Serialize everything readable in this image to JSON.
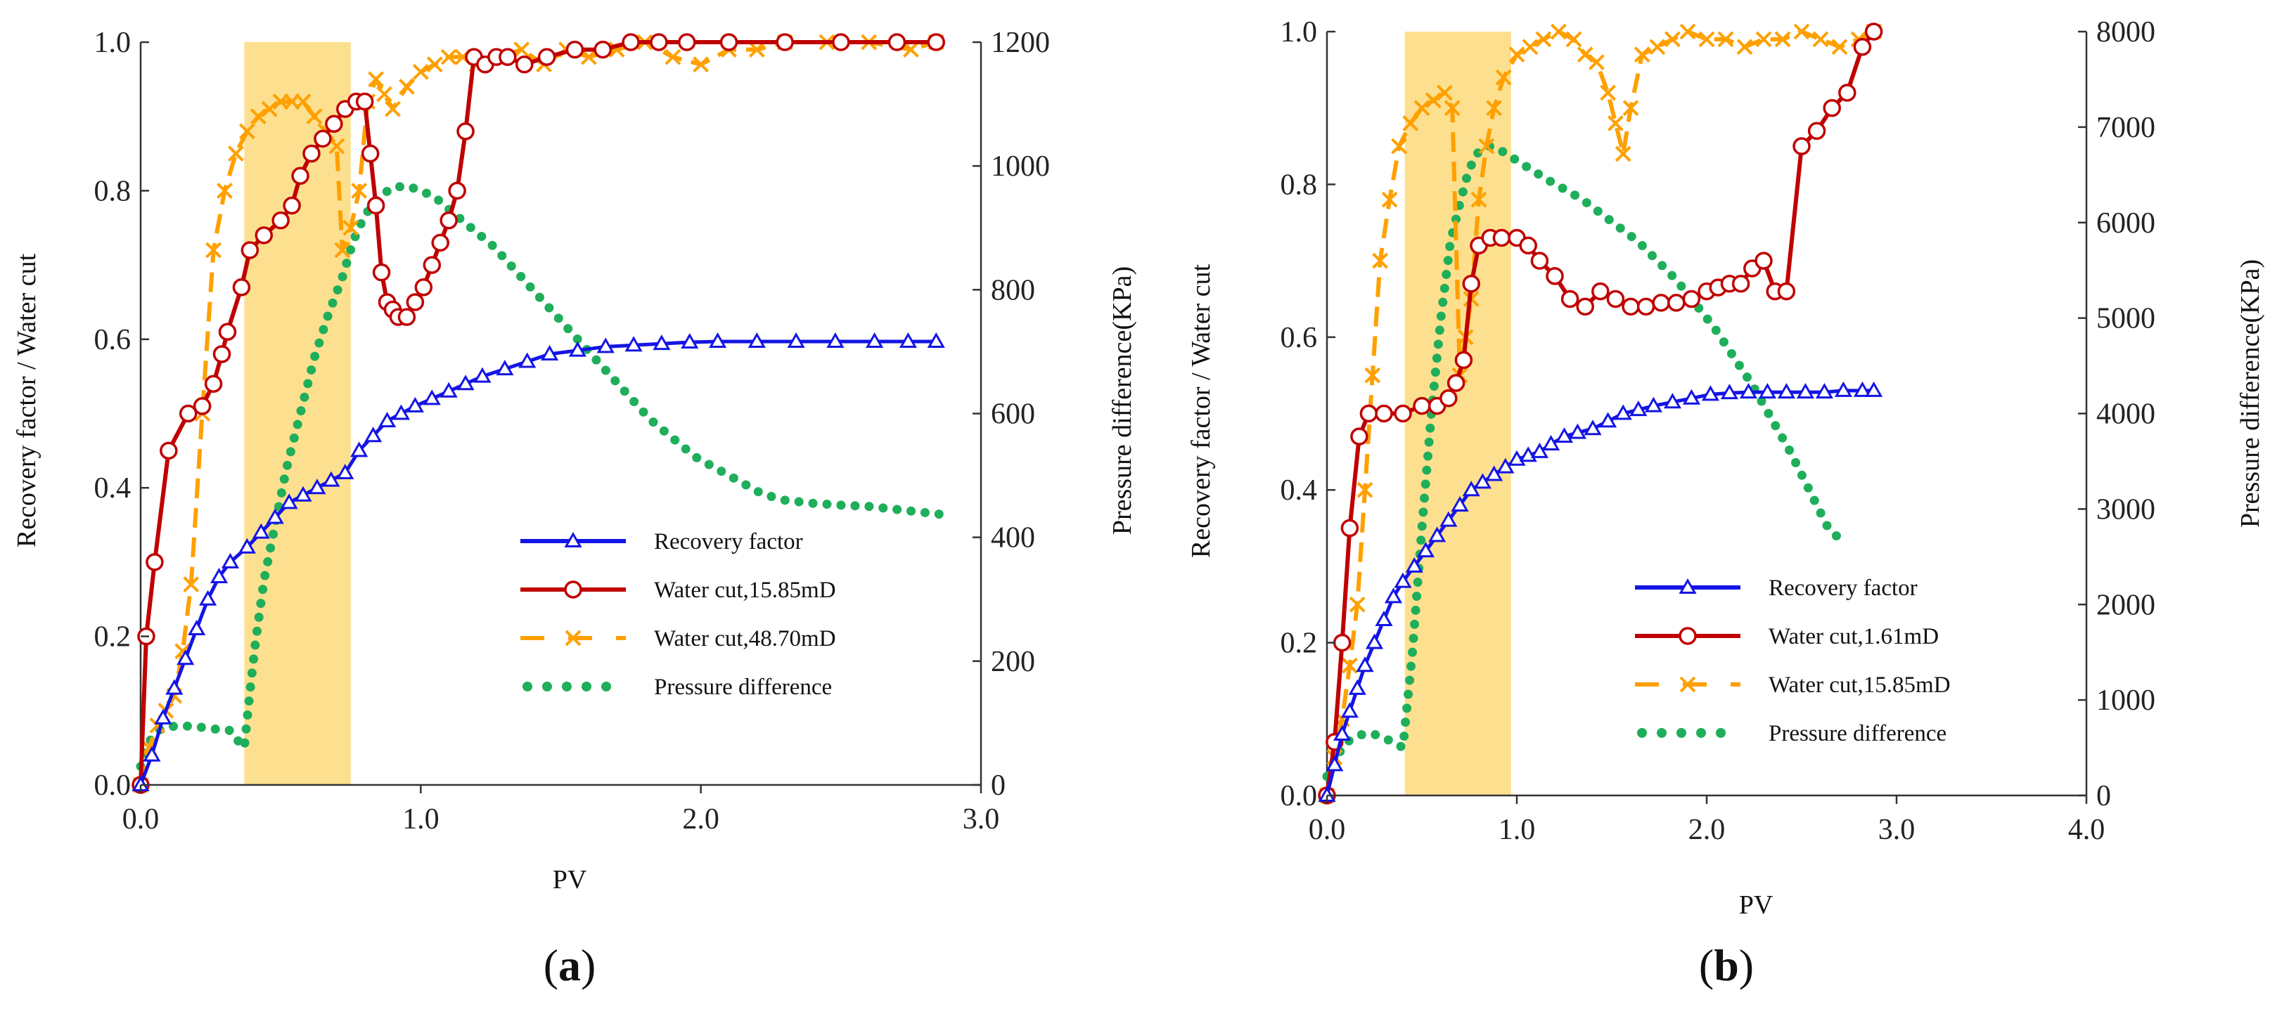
{
  "chart_data": [
    {
      "type": "line",
      "panel_id": "a",
      "caption": {
        "open": "(",
        "letter": "a",
        "close": ")"
      },
      "xlabel": "PV",
      "ylabel_left": "Recovery factor / Water cut",
      "ylabel_right": "Pressure difference(KPa)",
      "xlim": [
        0,
        3
      ],
      "xticks": [
        0,
        1,
        2,
        3
      ],
      "xtick_labels": [
        "0.0",
        "1.0",
        "2.0",
        "3.0"
      ],
      "ylim_left": [
        0,
        1
      ],
      "yticks_left": [
        0,
        0.2,
        0.4,
        0.6,
        0.8,
        1.0
      ],
      "ytick_labels_left": [
        "0.0",
        "0.2",
        "0.4",
        "0.6",
        "0.8",
        "1.0"
      ],
      "ylim_right": [
        0,
        1200
      ],
      "yticks_right": [
        0,
        200,
        400,
        600,
        800,
        1000,
        1200
      ],
      "ytick_labels_right": [
        "0",
        "200",
        "400",
        "600",
        "800",
        "1000",
        "1200"
      ],
      "highlight_x": [
        0.37,
        0.75
      ],
      "highlight_color": "#fde08f",
      "series": [
        {
          "name": "Recovery factor",
          "axis": "left",
          "style": "solid-triangle",
          "color": "#1414e6",
          "x": [
            0,
            0.04,
            0.08,
            0.12,
            0.16,
            0.2,
            0.24,
            0.28,
            0.32,
            0.38,
            0.43,
            0.48,
            0.53,
            0.58,
            0.63,
            0.68,
            0.73,
            0.78,
            0.83,
            0.88,
            0.93,
            0.98,
            1.04,
            1.1,
            1.16,
            1.22,
            1.3,
            1.38,
            1.46,
            1.56,
            1.66,
            1.76,
            1.86,
            1.96,
            2.06,
            2.2,
            2.34,
            2.48,
            2.62,
            2.74,
            2.84
          ],
          "y": [
            0.0,
            0.04,
            0.09,
            0.13,
            0.17,
            0.21,
            0.25,
            0.28,
            0.3,
            0.32,
            0.34,
            0.36,
            0.38,
            0.39,
            0.4,
            0.41,
            0.42,
            0.45,
            0.47,
            0.49,
            0.5,
            0.51,
            0.52,
            0.53,
            0.54,
            0.55,
            0.56,
            0.57,
            0.58,
            0.585,
            0.59,
            0.592,
            0.594,
            0.596,
            0.597,
            0.597,
            0.597,
            0.597,
            0.597,
            0.597,
            0.597
          ]
        },
        {
          "name": "Water cut,15.85mD",
          "axis": "left",
          "style": "solid-circle",
          "color": "#c00000",
          "x": [
            0,
            0.02,
            0.05,
            0.1,
            0.17,
            0.22,
            0.26,
            0.29,
            0.31,
            0.36,
            0.39,
            0.44,
            0.5,
            0.54,
            0.57,
            0.61,
            0.65,
            0.69,
            0.73,
            0.77,
            0.8,
            0.82,
            0.84,
            0.86,
            0.88,
            0.9,
            0.92,
            0.95,
            0.98,
            1.01,
            1.04,
            1.07,
            1.1,
            1.13,
            1.16,
            1.19,
            1.23,
            1.27,
            1.31,
            1.37,
            1.45,
            1.55,
            1.65,
            1.75,
            1.85,
            1.95,
            2.1,
            2.3,
            2.5,
            2.7,
            2.84
          ],
          "y": [
            0.0,
            0.2,
            0.3,
            0.45,
            0.5,
            0.51,
            0.54,
            0.58,
            0.61,
            0.67,
            0.72,
            0.74,
            0.76,
            0.78,
            0.82,
            0.85,
            0.87,
            0.89,
            0.91,
            0.92,
            0.92,
            0.85,
            0.78,
            0.69,
            0.65,
            0.64,
            0.63,
            0.63,
            0.65,
            0.67,
            0.7,
            0.73,
            0.76,
            0.8,
            0.88,
            0.98,
            0.97,
            0.98,
            0.98,
            0.97,
            0.98,
            0.99,
            0.99,
            1.0,
            1.0,
            1.0,
            1.0,
            1.0,
            1.0,
            1.0,
            1.0
          ]
        },
        {
          "name": "Water cut,48.70mD",
          "axis": "left",
          "style": "dashed-cross",
          "color": "#ffa000",
          "x": [
            0,
            0.03,
            0.06,
            0.09,
            0.12,
            0.15,
            0.18,
            0.22,
            0.26,
            0.3,
            0.34,
            0.38,
            0.42,
            0.46,
            0.5,
            0.54,
            0.58,
            0.62,
            0.66,
            0.7,
            0.72,
            0.75,
            0.78,
            0.81,
            0.84,
            0.87,
            0.9,
            0.95,
            1.0,
            1.05,
            1.1,
            1.15,
            1.2,
            1.28,
            1.36,
            1.44,
            1.52,
            1.6,
            1.7,
            1.8,
            1.9,
            2.0,
            2.1,
            2.2,
            2.3,
            2.45,
            2.6,
            2.75,
            2.84
          ],
          "y": [
            0.0,
            0.05,
            0.08,
            0.1,
            0.12,
            0.18,
            0.27,
            0.5,
            0.72,
            0.8,
            0.85,
            0.88,
            0.9,
            0.91,
            0.92,
            0.92,
            0.92,
            0.9,
            0.88,
            0.86,
            0.72,
            0.75,
            0.8,
            0.92,
            0.95,
            0.93,
            0.91,
            0.94,
            0.96,
            0.97,
            0.98,
            0.98,
            0.97,
            0.98,
            0.99,
            0.97,
            0.99,
            0.98,
            0.99,
            1.0,
            0.98,
            0.97,
            0.99,
            0.99,
            1.0,
            1.0,
            1.0,
            0.99,
            1.0
          ]
        },
        {
          "name": "Pressure difference",
          "axis": "right",
          "style": "dotted",
          "color": "#1fae5a",
          "x": [
            0,
            0.03,
            0.07,
            0.12,
            0.17,
            0.22,
            0.27,
            0.32,
            0.35,
            0.37,
            0.39,
            0.41,
            0.44,
            0.48,
            0.52,
            0.57,
            0.62,
            0.67,
            0.72,
            0.76,
            0.8,
            0.85,
            0.9,
            0.95,
            1.0,
            1.05,
            1.1,
            1.18,
            1.26,
            1.34,
            1.42,
            1.5,
            1.58,
            1.66,
            1.74,
            1.82,
            1.9,
            1.98,
            2.06,
            2.14,
            2.22,
            2.3,
            2.4,
            2.5,
            2.6,
            2.7,
            2.8,
            2.86
          ],
          "y": [
            30,
            70,
            90,
            95,
            95,
            93,
            90,
            88,
            70,
            60,
            150,
            230,
            330,
            420,
            510,
            600,
            690,
            760,
            820,
            880,
            920,
            950,
            965,
            968,
            960,
            950,
            930,
            900,
            870,
            830,
            790,
            750,
            710,
            670,
            630,
            590,
            560,
            530,
            510,
            490,
            470,
            460,
            455,
            452,
            450,
            445,
            440,
            437
          ]
        }
      ]
    },
    {
      "type": "line",
      "panel_id": "b",
      "caption": {
        "open": "(",
        "letter": "b",
        "close": ")"
      },
      "xlabel": "PV",
      "ylabel_left": "Recovery factor / Water cut",
      "ylabel_right": "Pressure difference(KPa)",
      "xlim": [
        0,
        4
      ],
      "xticks": [
        0,
        1,
        2,
        3,
        4
      ],
      "xtick_labels": [
        "0.0",
        "1.0",
        "2.0",
        "3.0",
        "4.0"
      ],
      "ylim_left": [
        0,
        1
      ],
      "yticks_left": [
        0,
        0.2,
        0.4,
        0.6,
        0.8,
        1.0
      ],
      "ytick_labels_left": [
        "0.0",
        "0.2",
        "0.4",
        "0.6",
        "0.8",
        "1.0"
      ],
      "ylim_right": [
        0,
        8000
      ],
      "yticks_right": [
        0,
        1000,
        2000,
        3000,
        4000,
        5000,
        6000,
        7000,
        8000
      ],
      "ytick_labels_right": [
        "0",
        "1000",
        "2000",
        "3000",
        "4000",
        "5000",
        "6000",
        "7000",
        "8000"
      ],
      "highlight_x": [
        0.41,
        0.97
      ],
      "highlight_color": "#fde08f",
      "series": [
        {
          "name": "Recovery factor",
          "axis": "left",
          "style": "solid-triangle",
          "color": "#1414e6",
          "x": [
            0,
            0.04,
            0.08,
            0.12,
            0.16,
            0.2,
            0.25,
            0.3,
            0.35,
            0.4,
            0.46,
            0.52,
            0.58,
            0.64,
            0.7,
            0.76,
            0.82,
            0.88,
            0.94,
            1.0,
            1.06,
            1.12,
            1.18,
            1.25,
            1.32,
            1.4,
            1.48,
            1.56,
            1.64,
            1.72,
            1.82,
            1.92,
            2.02,
            2.12,
            2.22,
            2.32,
            2.42,
            2.52,
            2.62,
            2.72,
            2.82,
            2.88
          ],
          "y": [
            0.0,
            0.04,
            0.08,
            0.11,
            0.14,
            0.17,
            0.2,
            0.23,
            0.26,
            0.28,
            0.3,
            0.32,
            0.34,
            0.36,
            0.38,
            0.4,
            0.41,
            0.42,
            0.43,
            0.44,
            0.445,
            0.45,
            0.46,
            0.47,
            0.475,
            0.48,
            0.49,
            0.5,
            0.505,
            0.51,
            0.515,
            0.52,
            0.525,
            0.527,
            0.528,
            0.528,
            0.528,
            0.528,
            0.528,
            0.53,
            0.53,
            0.53
          ]
        },
        {
          "name": "Water cut,1.61mD",
          "axis": "left",
          "style": "solid-circle",
          "color": "#c00000",
          "x": [
            0,
            0.04,
            0.08,
            0.12,
            0.17,
            0.22,
            0.3,
            0.4,
            0.5,
            0.58,
            0.64,
            0.68,
            0.72,
            0.76,
            0.8,
            0.86,
            0.92,
            1.0,
            1.06,
            1.12,
            1.2,
            1.28,
            1.36,
            1.44,
            1.52,
            1.6,
            1.68,
            1.76,
            1.84,
            1.92,
            2.0,
            2.06,
            2.12,
            2.18,
            2.24,
            2.3,
            2.36,
            2.42,
            2.5,
            2.58,
            2.66,
            2.74,
            2.82,
            2.88
          ],
          "y": [
            0.0,
            0.07,
            0.2,
            0.35,
            0.47,
            0.5,
            0.5,
            0.5,
            0.51,
            0.51,
            0.52,
            0.54,
            0.57,
            0.67,
            0.72,
            0.73,
            0.73,
            0.73,
            0.72,
            0.7,
            0.68,
            0.65,
            0.64,
            0.66,
            0.65,
            0.64,
            0.64,
            0.645,
            0.645,
            0.65,
            0.66,
            0.665,
            0.67,
            0.67,
            0.69,
            0.7,
            0.66,
            0.66,
            0.85,
            0.87,
            0.9,
            0.92,
            0.98,
            1.0
          ]
        },
        {
          "name": "Water cut,15.85mD",
          "axis": "left",
          "style": "dashed-cross",
          "color": "#ffa000",
          "x": [
            0,
            0.04,
            0.08,
            0.12,
            0.16,
            0.2,
            0.24,
            0.28,
            0.33,
            0.38,
            0.44,
            0.5,
            0.56,
            0.62,
            0.66,
            0.7,
            0.73,
            0.76,
            0.8,
            0.84,
            0.88,
            0.93,
            1.0,
            1.07,
            1.14,
            1.22,
            1.3,
            1.36,
            1.42,
            1.48,
            1.52,
            1.56,
            1.6,
            1.66,
            1.74,
            1.82,
            1.9,
            2.0,
            2.1,
            2.2,
            2.3,
            2.4,
            2.5,
            2.6,
            2.7,
            2.8,
            2.88
          ],
          "y": [
            0.0,
            0.05,
            0.1,
            0.17,
            0.25,
            0.4,
            0.55,
            0.7,
            0.78,
            0.85,
            0.88,
            0.9,
            0.91,
            0.92,
            0.9,
            0.55,
            0.6,
            0.65,
            0.78,
            0.85,
            0.9,
            0.94,
            0.97,
            0.98,
            0.99,
            1.0,
            0.99,
            0.97,
            0.96,
            0.92,
            0.88,
            0.84,
            0.9,
            0.97,
            0.98,
            0.99,
            1.0,
            0.99,
            0.99,
            0.98,
            0.99,
            0.99,
            1.0,
            0.99,
            0.98,
            0.99,
            1.0
          ]
        },
        {
          "name": "Pressure difference",
          "axis": "right",
          "style": "dotted",
          "color": "#1fae5a",
          "x": [
            0,
            0.04,
            0.08,
            0.12,
            0.16,
            0.2,
            0.25,
            0.3,
            0.35,
            0.4,
            0.45,
            0.5,
            0.55,
            0.6,
            0.65,
            0.7,
            0.74,
            0.78,
            0.82,
            0.86,
            0.92,
            1.0,
            1.08,
            1.16,
            1.25,
            1.34,
            1.44,
            1.54,
            1.64,
            1.74,
            1.84,
            1.94,
            2.04,
            2.14,
            2.24,
            2.34,
            2.44,
            2.54,
            2.64,
            2.72
          ],
          "y": [
            200,
            350,
            500,
            580,
            620,
            650,
            640,
            600,
            560,
            500,
            1500,
            2800,
            4000,
            5000,
            5800,
            6200,
            6500,
            6700,
            6780,
            6800,
            6750,
            6650,
            6550,
            6450,
            6350,
            6250,
            6100,
            5950,
            5800,
            5600,
            5400,
            5150,
            4900,
            4600,
            4300,
            3950,
            3600,
            3200,
            2800,
            2650
          ]
        }
      ]
    }
  ],
  "legends": [
    {
      "items": [
        {
          "label": "Recovery factor",
          "style": "solid-triangle",
          "color": "#1414e6"
        },
        {
          "label": "Water cut,15.85mD",
          "style": "solid-circle",
          "color": "#c00000"
        },
        {
          "label": "Water cut,48.70mD",
          "style": "dashed-cross",
          "color": "#ffa000"
        },
        {
          "label": "Pressure difference",
          "style": "dotted",
          "color": "#1fae5a"
        }
      ]
    },
    {
      "items": [
        {
          "label": "Recovery factor",
          "style": "solid-triangle",
          "color": "#1414e6"
        },
        {
          "label": "Water cut,1.61mD",
          "style": "solid-circle",
          "color": "#c00000"
        },
        {
          "label": "Water cut,15.85mD",
          "style": "dashed-cross",
          "color": "#ffa000"
        },
        {
          "label": "Pressure difference",
          "style": "dotted",
          "color": "#1fae5a"
        }
      ]
    }
  ]
}
